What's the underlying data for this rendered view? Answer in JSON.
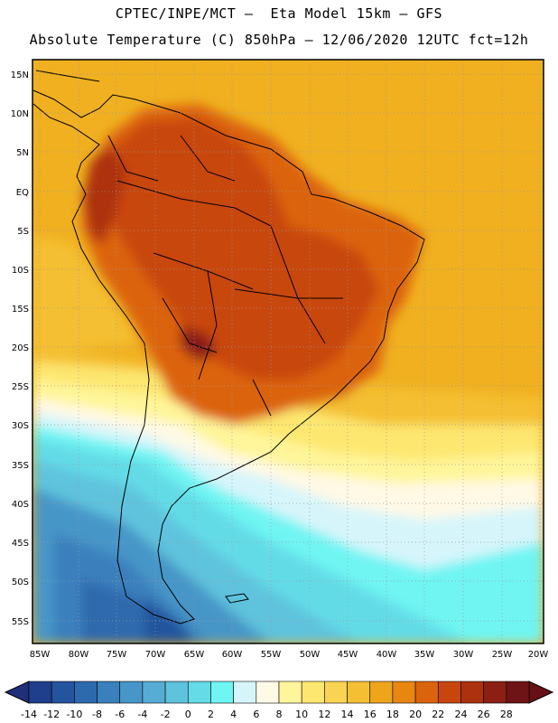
{
  "title": {
    "line1": "CPTEC/INPE/MCT –  Eta Model 15km – GFS",
    "line2": "Absolute Temperature (C) 850hPa – 12/06/2020 12UTC fct=12h"
  },
  "axes": {
    "lat_labels": [
      "15N",
      "10N",
      "5N",
      "EQ",
      "5S",
      "10S",
      "15S",
      "20S",
      "25S",
      "30S",
      "35S",
      "40S",
      "45S",
      "50S",
      "55S"
    ],
    "lon_labels": [
      "85W",
      "80W",
      "75W",
      "70W",
      "65W",
      "60W",
      "55W",
      "50W",
      "45W",
      "40W",
      "35W",
      "30W",
      "25W",
      "20W"
    ]
  },
  "colorbar": {
    "labels": [
      "-14",
      "-12",
      "-10",
      "-8",
      "-6",
      "-4",
      "-2",
      "0",
      "2",
      "4",
      "6",
      "8",
      "10",
      "12",
      "14",
      "16",
      "18",
      "20",
      "22",
      "24",
      "26",
      "28"
    ],
    "colors": [
      "#1f3e8c",
      "#24549e",
      "#2d6aad",
      "#3a80bd",
      "#4796c8",
      "#56acd4",
      "#5fc3dd",
      "#64dbe7",
      "#6ff5f3",
      "#d6f5fb",
      "#fff9e6",
      "#fff59a",
      "#fde770",
      "#f9d452",
      "#f4bf32",
      "#eea51c",
      "#e88612",
      "#dc630d",
      "#c8460d",
      "#ad300f",
      "#8b1f14",
      "#6e1316"
    ],
    "under_color": "#1f2f7a",
    "over_color": "#661016"
  }
}
